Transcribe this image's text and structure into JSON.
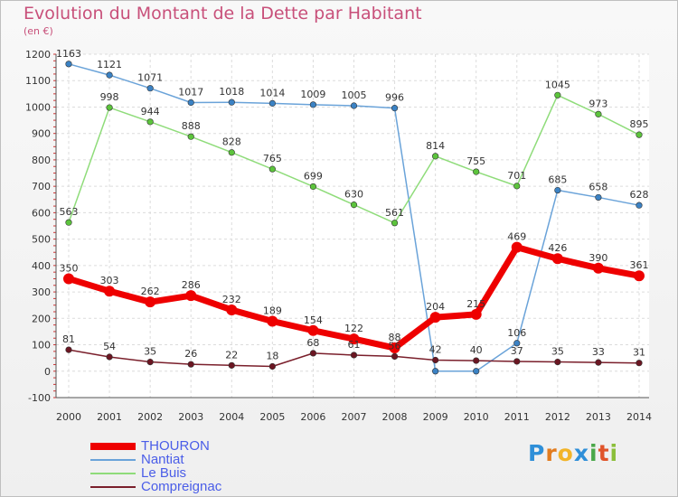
{
  "title": "Evolution du Montant de la Dette par Habitant",
  "subtitle": "(en €)",
  "logo": {
    "letters": [
      "P",
      "r",
      "o",
      "x",
      "i",
      "t",
      "i"
    ],
    "colors": [
      "#2f8fd8",
      "#e27c1f",
      "#f2b428",
      "#2f8fd8",
      "#4aa84a",
      "#e0542a",
      "#8bbf3a"
    ]
  },
  "chart_data": {
    "type": "line",
    "x": [
      2000,
      2001,
      2002,
      2003,
      2004,
      2005,
      2006,
      2007,
      2008,
      2009,
      2010,
      2011,
      2012,
      2013,
      2014
    ],
    "ylim": [
      -100,
      1200
    ],
    "yticks": [
      -100,
      0,
      100,
      200,
      300,
      400,
      500,
      600,
      700,
      800,
      900,
      1000,
      1100,
      1200
    ],
    "grid": true,
    "legend_position": "bottom-left",
    "series": [
      {
        "name": "THOURON",
        "color": "#ee0000",
        "dot": "#ee0000",
        "width": 7,
        "dotr": 6,
        "values": [
          350,
          303,
          262,
          286,
          232,
          189,
          154,
          122,
          88,
          204,
          215,
          469,
          426,
          390,
          361
        ]
      },
      {
        "name": "Nantiat",
        "color": "#6aa3d9",
        "dot": "#3b82c4",
        "width": 1.5,
        "dotr": 3.3,
        "values": [
          1163,
          1121,
          1071,
          1017,
          1018,
          1014,
          1009,
          1005,
          996,
          0,
          0,
          106,
          685,
          658,
          628
        ],
        "labels": [
          "1163",
          "1121",
          "1071",
          "1017",
          "1018",
          "1014",
          "1009",
          "1005",
          "996",
          "",
          "",
          "106",
          "685",
          "658",
          "628"
        ]
      },
      {
        "name": "Le Buis",
        "color": "#8fdc7a",
        "dot": "#5cc43c",
        "width": 1.5,
        "dotr": 3.3,
        "values": [
          563,
          998,
          944,
          888,
          828,
          765,
          699,
          630,
          561,
          814,
          755,
          701,
          1045,
          973,
          895
        ]
      },
      {
        "name": "Compreignac",
        "color": "#7a1f2b",
        "dot": "#6b1622",
        "width": 1.5,
        "dotr": 3.3,
        "values": [
          81,
          54,
          35,
          26,
          22,
          18,
          68,
          61,
          56,
          42,
          40,
          37,
          35,
          33,
          31
        ]
      }
    ]
  }
}
